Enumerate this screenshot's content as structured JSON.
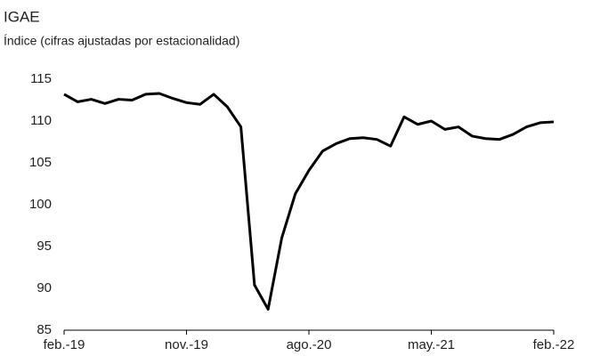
{
  "chart_data": {
    "type": "line",
    "title": "IGAE",
    "subtitle": "Índice (cifras ajustadas por estacionalidad)",
    "categories": [
      "feb.-19",
      null,
      null,
      null,
      null,
      null,
      null,
      null,
      null,
      "nov.-19",
      null,
      null,
      null,
      null,
      null,
      null,
      null,
      null,
      "ago.-20",
      null,
      null,
      null,
      null,
      null,
      null,
      null,
      null,
      "may.-21",
      null,
      null,
      null,
      null,
      null,
      null,
      null,
      null,
      "feb.-22"
    ],
    "series": [
      {
        "name": "IGAE",
        "color": "#000000",
        "values": [
          113.2,
          112.3,
          112.6,
          112.1,
          112.6,
          112.5,
          113.2,
          113.3,
          112.7,
          112.2,
          112.0,
          113.2,
          111.7,
          109.3,
          90.4,
          87.5,
          96.0,
          101.3,
          104.1,
          106.4,
          107.3,
          107.9,
          108.0,
          107.8,
          107.0,
          110.5,
          109.6,
          110.0,
          109.0,
          109.3,
          108.2,
          107.9,
          107.8,
          108.4,
          109.3,
          109.8,
          109.9
        ]
      }
    ],
    "ylim": [
      85,
      115
    ],
    "yticks": [
      85,
      90,
      95,
      100,
      105,
      110,
      115
    ],
    "grid": false
  }
}
